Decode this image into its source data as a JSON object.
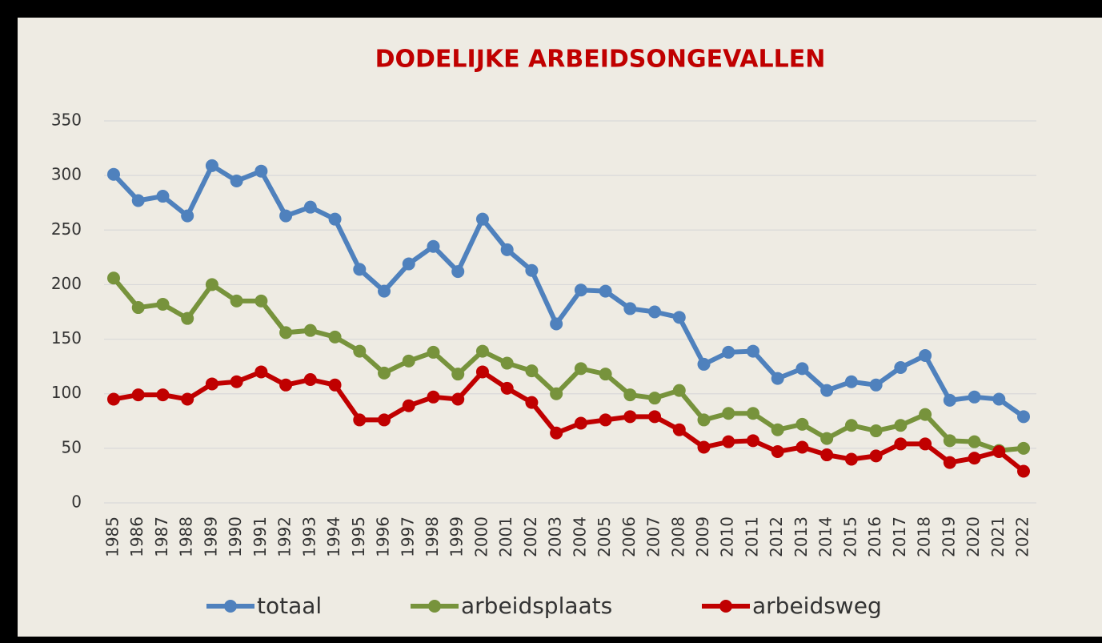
{
  "chart_data": {
    "type": "line",
    "title": "DODELIJKE ARBEIDSONGEVALLEN",
    "categories": [
      "1985",
      "1986",
      "1987",
      "1988",
      "1989",
      "1990",
      "1991",
      "1992",
      "1993",
      "1994",
      "1995",
      "1996",
      "1997",
      "1998",
      "1999",
      "2000",
      "2001",
      "2002",
      "2003",
      "2004",
      "2005",
      "2006",
      "2007",
      "2008",
      "2009",
      "2010",
      "2011",
      "2012",
      "2013",
      "2014",
      "2015",
      "2016",
      "2017",
      "2018",
      "2019",
      "2020",
      "2021",
      "2022"
    ],
    "series": [
      {
        "name": "totaal",
        "color": "#4f81bd",
        "values": [
          301,
          277,
          281,
          263,
          309,
          295,
          304,
          263,
          271,
          260,
          214,
          194,
          219,
          235,
          212,
          260,
          232,
          213,
          164,
          195,
          194,
          178,
          175,
          170,
          127,
          138,
          139,
          114,
          123,
          103,
          111,
          108,
          124,
          135,
          94,
          97,
          95,
          79
        ]
      },
      {
        "name": "arbeidsplaats",
        "color": "#77933c",
        "values": [
          206,
          179,
          182,
          169,
          200,
          185,
          185,
          156,
          158,
          152,
          139,
          119,
          130,
          138,
          118,
          139,
          128,
          121,
          100,
          123,
          118,
          99,
          96,
          103,
          76,
          82,
          82,
          67,
          72,
          59,
          71,
          66,
          71,
          81,
          57,
          56,
          48,
          50
        ]
      },
      {
        "name": "arbeidsweg",
        "color": "#c00000",
        "values": [
          95,
          99,
          99,
          95,
          109,
          111,
          120,
          108,
          113,
          108,
          76,
          76,
          89,
          97,
          95,
          120,
          105,
          92,
          64,
          73,
          76,
          79,
          79,
          67,
          51,
          56,
          57,
          47,
          51,
          44,
          40,
          43,
          54,
          54,
          37,
          41,
          47,
          29
        ]
      }
    ],
    "ylim": [
      0,
      350
    ],
    "yticks": [
      0,
      50,
      100,
      150,
      200,
      250,
      300,
      350
    ],
    "grid": true,
    "legend": "bottom"
  }
}
